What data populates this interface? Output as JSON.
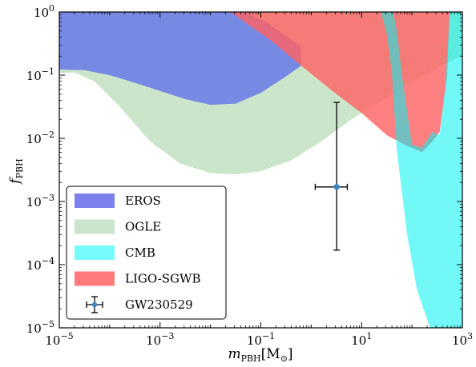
{
  "chart_data": {
    "type": "area",
    "xlabel": {
      "main": "m",
      "sub": "PBH",
      "suffix": "[M",
      "sun": "⊙",
      "close": "]"
    },
    "ylabel": {
      "main": "f",
      "sub": "PBH"
    },
    "xscale": "log",
    "yscale": "log",
    "xlim_exp": [
      -5,
      3
    ],
    "ylim_exp": [
      -5,
      0
    ],
    "x_ticks": [
      {
        "base": "10",
        "exp": "−5",
        "e": -5
      },
      {
        "base": "10",
        "exp": "−3",
        "e": -3
      },
      {
        "base": "10",
        "exp": "−1",
        "e": -1
      },
      {
        "base": "10",
        "exp": "1",
        "e": 1
      },
      {
        "base": "10",
        "exp": "3",
        "e": 3
      }
    ],
    "y_ticks": [
      {
        "base": "10",
        "exp": "−5",
        "e": -5
      },
      {
        "base": "10",
        "exp": "−4",
        "e": -4
      },
      {
        "base": "10",
        "exp": "−3",
        "e": -3
      },
      {
        "base": "10",
        "exp": "−2",
        "e": -2
      },
      {
        "base": "10",
        "exp": "−1",
        "e": -1
      },
      {
        "base": "10",
        "exp": "0",
        "e": 0
      }
    ],
    "legend_position": "lower-left",
    "regions": [
      {
        "name": "OGLE",
        "color": "#a9d4a9",
        "opacity": 0.6,
        "boundary_log10": [
          [
            -5.1,
            -0.97
          ],
          [
            -4.7,
            -0.96
          ],
          [
            -4.3,
            -1.1
          ],
          [
            -3.8,
            -1.5
          ],
          [
            -3.2,
            -2.05
          ],
          [
            -2.6,
            -2.4
          ],
          [
            -2.0,
            -2.55
          ],
          [
            -1.5,
            -2.57
          ],
          [
            -1.0,
            -2.52
          ],
          [
            -0.4,
            -2.35
          ],
          [
            0.2,
            -2.05
          ],
          [
            0.8,
            -1.7
          ],
          [
            1.4,
            -1.4
          ],
          [
            2.0,
            -1.1
          ],
          [
            2.6,
            -0.85
          ],
          [
            3.1,
            -0.65
          ],
          [
            3.1,
            0.1
          ],
          [
            -5.1,
            0.1
          ]
        ]
      },
      {
        "name": "EROS",
        "color": "#6e7fe6",
        "opacity": 0.9,
        "boundary_log10": [
          [
            -5.1,
            -0.91
          ],
          [
            -4.5,
            -0.92
          ],
          [
            -4.0,
            -1.0
          ],
          [
            -3.5,
            -1.12
          ],
          [
            -3.0,
            -1.25
          ],
          [
            -2.5,
            -1.38
          ],
          [
            -2.0,
            -1.47
          ],
          [
            -1.5,
            -1.45
          ],
          [
            -1.0,
            -1.28
          ],
          [
            -0.5,
            -1.02
          ],
          [
            -0.2,
            -0.85
          ],
          [
            -0.2,
            -0.55
          ],
          [
            -0.9,
            -0.15
          ],
          [
            -1.6,
            0.1
          ],
          [
            -5.1,
            0.1
          ]
        ]
      },
      {
        "name": "LIGO-SGWB",
        "color": "#ff6060",
        "opacity": 0.8,
        "boundary_log10": [
          [
            -1.6,
            0.1
          ],
          [
            -1.6,
            0.0
          ],
          [
            -0.8,
            -0.45
          ],
          [
            0.0,
            -0.98
          ],
          [
            0.5,
            -1.3
          ],
          [
            1.0,
            -1.6
          ],
          [
            1.5,
            -1.95
          ],
          [
            1.85,
            -2.1
          ],
          [
            2.2,
            -2.22
          ],
          [
            2.4,
            -2.05
          ],
          [
            2.55,
            -1.9
          ],
          [
            2.7,
            -1.0
          ],
          [
            2.75,
            0.1
          ]
        ]
      },
      {
        "name": "CMB",
        "color": "#00f2f2",
        "opacity": 0.55,
        "boundary_log10": [
          [
            1.35,
            0.1
          ],
          [
            1.5,
            -0.35
          ],
          [
            1.6,
            -0.95
          ],
          [
            1.7,
            -2.2
          ],
          [
            1.9,
            -3.5
          ],
          [
            2.1,
            -4.4
          ],
          [
            2.4,
            -5.1
          ],
          [
            3.1,
            -5.1
          ],
          [
            3.1,
            0.1
          ],
          [
            2.75,
            0.1
          ],
          [
            2.72,
            -0.4
          ],
          [
            2.65,
            -1.25
          ],
          [
            2.55,
            -1.95
          ],
          [
            2.4,
            -1.9
          ],
          [
            2.2,
            -2.15
          ],
          [
            2.0,
            -2.1
          ],
          [
            1.8,
            -1.0
          ],
          [
            1.7,
            -0.3
          ],
          [
            1.6,
            0.1
          ]
        ]
      }
    ],
    "error_point": {
      "name": "GW230529",
      "x": 3.2,
      "y": 0.0017,
      "x_err": [
        1.2,
        5.2
      ],
      "y_err": [
        0.00017,
        0.037
      ],
      "color": "#3a88c9"
    },
    "legend": [
      {
        "label": "EROS",
        "color": "#7b80ec",
        "kind": "patch"
      },
      {
        "label": "OGLE",
        "color": "#cce3cc",
        "kind": "patch"
      },
      {
        "label": "CMB",
        "color": "#77fafa",
        "kind": "patch"
      },
      {
        "label": "LIGO-SGWB",
        "color": "#ff7b7b",
        "kind": "patch"
      },
      {
        "label": "GW230529",
        "color": "#3a88c9",
        "kind": "errorbar"
      }
    ]
  }
}
